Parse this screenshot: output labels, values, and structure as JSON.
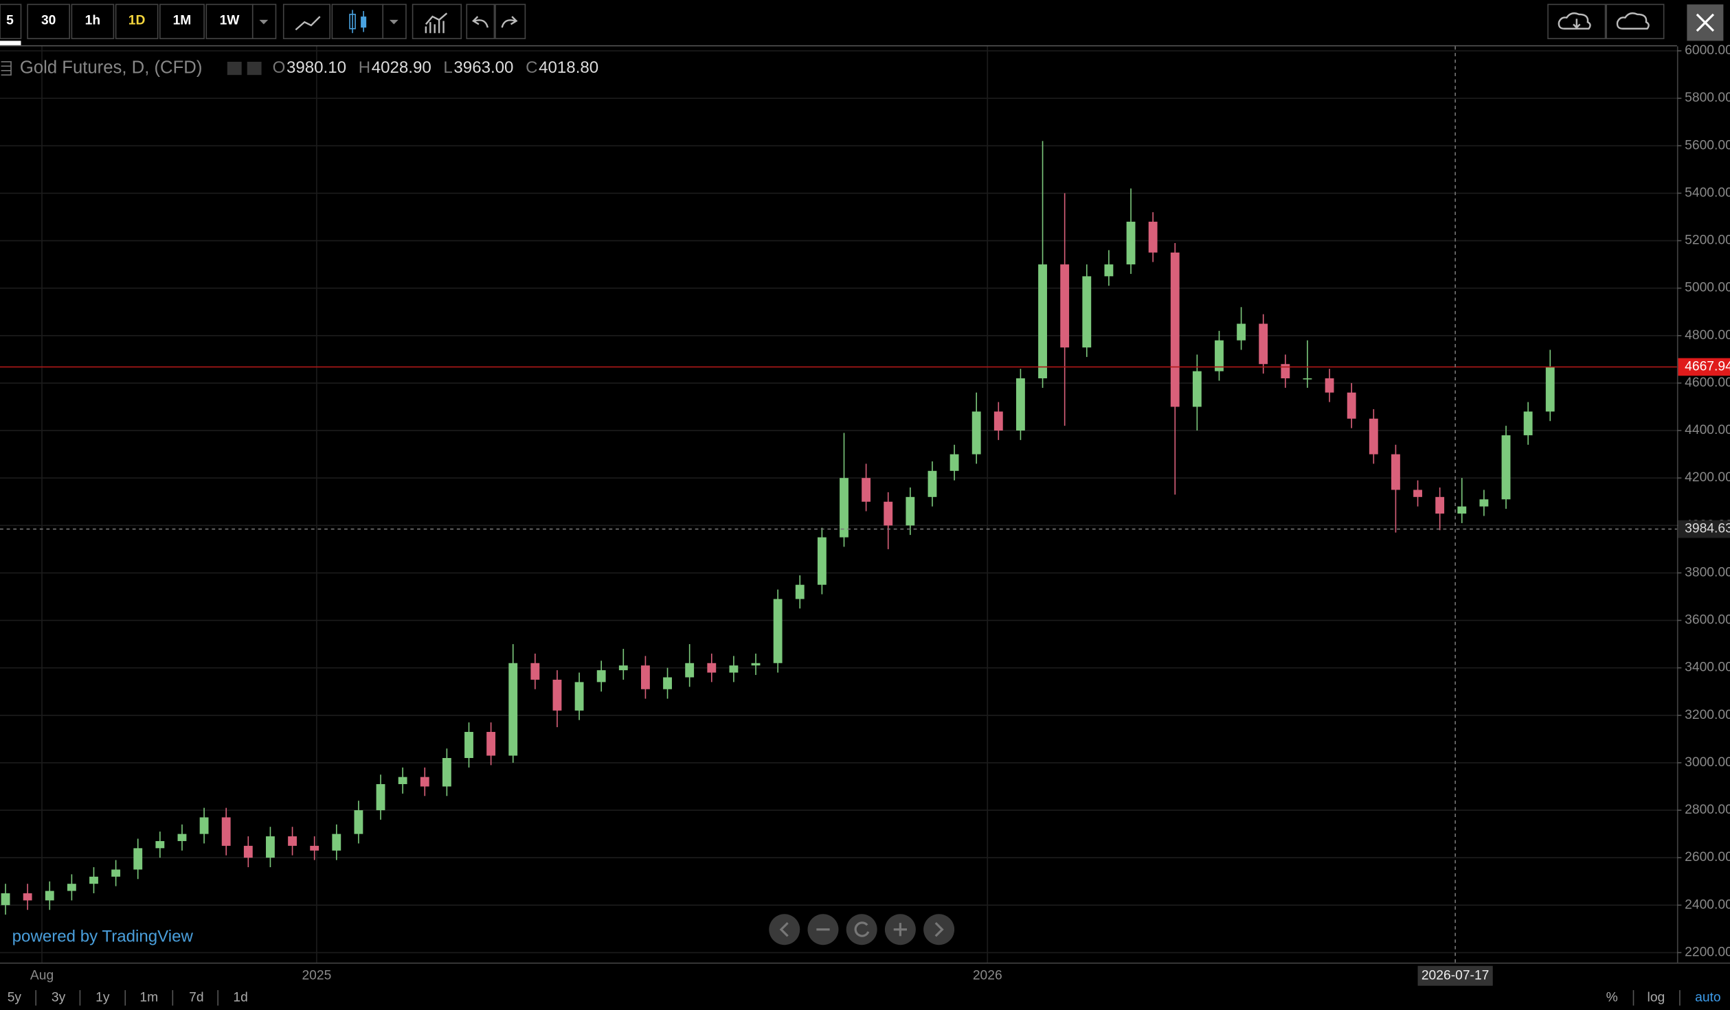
{
  "toolbar": {
    "intervals": [
      "5",
      "30",
      "1h",
      "1D",
      "1M",
      "1W"
    ]
  },
  "range_buttons": [
    "5y",
    "3y",
    "1y",
    "1m",
    "7d",
    "1d"
  ],
  "scale_buttons": [
    "%",
    "log",
    "auto"
  ],
  "branding": "powered by TradingView",
  "chart_data": {
    "type": "candlestick",
    "title": "Gold Futures, D, (CFD)",
    "legend_values": [
      {
        "key": "O",
        "value": "3980.10"
      },
      {
        "key": "H",
        "value": "4028.90"
      },
      {
        "key": "L",
        "value": "3963.00"
      },
      {
        "key": "C",
        "value": "4018.80"
      }
    ],
    "colors": {
      "up": "#7cc97c",
      "down": "#d9607a"
    },
    "open": [
      2400,
      2450,
      2420,
      2460,
      2490,
      2520,
      2550,
      2640,
      2670,
      2700,
      2770,
      2650,
      2600,
      2690,
      2650,
      2630,
      2700,
      2800,
      2910,
      2940,
      2900,
      3020,
      3130,
      3030,
      3420,
      3350,
      3220,
      3340,
      3390,
      3410,
      3310,
      3360,
      3420,
      3380,
      3410,
      3420,
      3690,
      3750,
      3950,
      4200,
      4100,
      4000,
      4120,
      4230,
      4300,
      4480,
      4400,
      4620,
      5100,
      4750,
      5050,
      5100,
      5280,
      5150,
      4500,
      4650,
      4780,
      4850,
      4680,
      4620,
      4620,
      4560,
      4450,
      4300,
      4150,
      4120,
      4050,
      4080,
      4110,
      4380,
      4480
    ],
    "high": [
      2490,
      2490,
      2500,
      2530,
      2560,
      2590,
      2680,
      2710,
      2740,
      2810,
      2810,
      2690,
      2730,
      2730,
      2690,
      2740,
      2840,
      2950,
      2980,
      2980,
      3060,
      3170,
      3170,
      3500,
      3460,
      3390,
      3380,
      3430,
      3480,
      3450,
      3400,
      3500,
      3460,
      3450,
      3460,
      3730,
      3790,
      3990,
      4390,
      4260,
      4140,
      4160,
      4270,
      4340,
      4560,
      4520,
      4660,
      5620,
      5400,
      5100,
      5160,
      5420,
      5320,
      5190,
      4720,
      4820,
      4920,
      4890,
      4720,
      4780,
      4660,
      4600,
      4490,
      4340,
      4190,
      4160,
      4200,
      4150,
      4420,
      4520,
      4740
    ],
    "low": [
      2360,
      2380,
      2380,
      2420,
      2450,
      2480,
      2510,
      2600,
      2630,
      2660,
      2610,
      2560,
      2560,
      2610,
      2590,
      2590,
      2660,
      2760,
      2870,
      2860,
      2860,
      2980,
      2990,
      3000,
      3310,
      3150,
      3180,
      3300,
      3350,
      3270,
      3270,
      3320,
      3340,
      3340,
      3370,
      3380,
      3650,
      3710,
      3910,
      4060,
      3900,
      3960,
      4080,
      4190,
      4260,
      4360,
      4360,
      4580,
      4420,
      4710,
      5010,
      5060,
      5110,
      4130,
      4400,
      4610,
      4740,
      4640,
      4580,
      4580,
      4520,
      4410,
      4260,
      3970,
      4080,
      3980,
      4010,
      4040,
      4070,
      4340,
      4440
    ],
    "close": [
      2450,
      2420,
      2460,
      2490,
      2520,
      2550,
      2640,
      2670,
      2700,
      2770,
      2650,
      2600,
      2690,
      2650,
      2630,
      2700,
      2800,
      2910,
      2940,
      2900,
      3020,
      3130,
      3030,
      3420,
      3350,
      3220,
      3340,
      3390,
      3410,
      3310,
      3360,
      3420,
      3380,
      3410,
      3420,
      3690,
      3750,
      3950,
      4200,
      4100,
      4000,
      4120,
      4230,
      4300,
      4480,
      4400,
      4620,
      5100,
      4750,
      5050,
      5100,
      5280,
      5150,
      4500,
      4650,
      4780,
      4850,
      4680,
      4620,
      4620,
      4560,
      4450,
      4300,
      4150,
      4120,
      4050,
      4080,
      4110,
      4380,
      4480,
      4668
    ],
    "xlim": [
      -0.25,
      75.75
    ],
    "xticks": [
      {
        "value": 1.65,
        "label": "Aug"
      },
      {
        "value": 14.1,
        "label": "2025"
      },
      {
        "value": 44.5,
        "label": "2026"
      }
    ],
    "ylim": [
      2158,
      6019
    ],
    "yticks": [
      {
        "value": 2200,
        "label": "2200.00"
      },
      {
        "value": 2400,
        "label": "2400.00"
      },
      {
        "value": 2600,
        "label": "2600.00"
      },
      {
        "value": 2800,
        "label": "2800.00"
      },
      {
        "value": 3000,
        "label": "3000.00"
      },
      {
        "value": 3200,
        "label": "3200.00"
      },
      {
        "value": 3400,
        "label": "3400.00"
      },
      {
        "value": 3600,
        "label": "3600.00"
      },
      {
        "value": 3800,
        "label": "3800.00"
      },
      {
        "value": 4000,
        "label": "4000.00"
      },
      {
        "value": 4200,
        "label": "4200.00"
      },
      {
        "value": 4400,
        "label": "4400.00"
      },
      {
        "value": 4600,
        "label": "4600.00"
      },
      {
        "value": 4800,
        "label": "4800.00"
      },
      {
        "value": 5000,
        "label": "5000.00"
      },
      {
        "value": 5200,
        "label": "5200.00"
      },
      {
        "value": 5400,
        "label": "5400.00"
      },
      {
        "value": 5600,
        "label": "5600.00"
      },
      {
        "value": 5800,
        "label": "5800.00"
      },
      {
        "value": 6000,
        "label": "6000.00"
      }
    ],
    "grid": true,
    "last_price": 4667.94,
    "crosshair": {
      "x": {
        "value": 65.7,
        "label": "2026-07-17"
      },
      "y": 3984.63
    }
  }
}
